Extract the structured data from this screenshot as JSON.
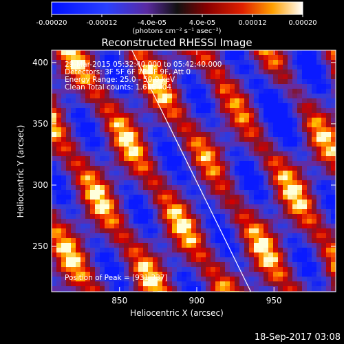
{
  "chart_data": {
    "type": "heatmap",
    "title": "Reconstructed RHESSI Image",
    "xlabel": "Heliocentric X (arcsec)",
    "ylabel": "Heliocentric Y (arcsec)",
    "xlim": [
      806,
      990
    ],
    "ylim": [
      213,
      410
    ],
    "x_ticks": [
      850,
      900,
      950
    ],
    "y_ticks": [
      250,
      300,
      350,
      400
    ],
    "colorbar": {
      "range": [
        -0.0002,
        0.0002
      ],
      "tick_labels": [
        "-0.00020",
        "-0.00012",
        "-4.0e-05",
        "4.0e-05",
        "0.00012",
        "0.00020"
      ],
      "tick_values": [
        -0.0002,
        -0.00012,
        -4e-05,
        4e-05,
        0.00012,
        0.0002
      ],
      "units": "(photons cm⁻² s⁻¹ asec⁻²)"
    },
    "annotations": [
      "29-Mar-2015 05:32:40.000 to 05:42:40.000",
      "Detectors: 3F 5F 6F 7F 8F 9F, Att 0",
      "Energy Range: 25.0 - 50.0 keV",
      "Clean     Total counts: 1.61E+04"
    ],
    "peak_label": "Position of Peak = [931,337]",
    "peak_position": [
      931,
      337
    ],
    "limb_line": [
      [
        858,
        410
      ],
      [
        935,
        213
      ]
    ],
    "colors": {
      "negative": "#0a1aff",
      "zero": "#6b2a9a",
      "mid": "#d00000",
      "positive": "#ffb000",
      "max": "#ffffff"
    }
  },
  "footer_timestamp": "18-Sep-2017 03:08"
}
